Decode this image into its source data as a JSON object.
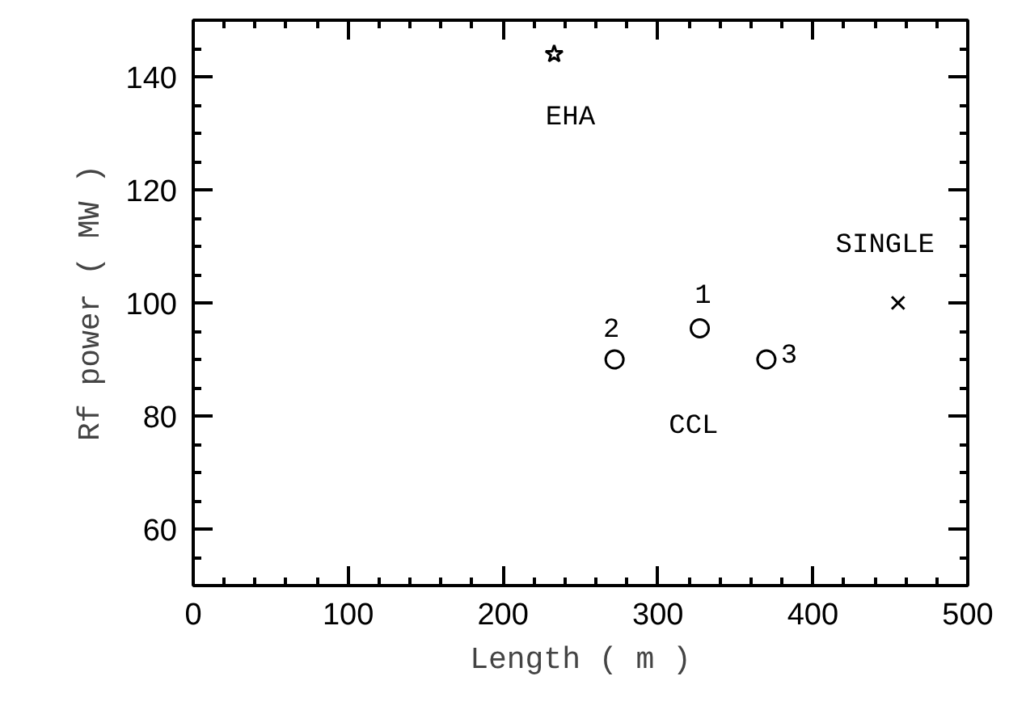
{
  "chart_data": {
    "type": "scatter",
    "xlabel": "Length ( m )",
    "ylabel": "Rf power ( MW )",
    "xlim": [
      0,
      500
    ],
    "ylim": [
      50,
      150
    ],
    "xticks": [
      0,
      100,
      200,
      300,
      400,
      500
    ],
    "yticks": [
      60,
      80,
      100,
      120,
      140
    ],
    "grid": false,
    "series": [
      {
        "name": "EHA",
        "color": "#000000",
        "marker": "star",
        "x": [
          233
        ],
        "values": [
          144
        ]
      },
      {
        "name": "CCL",
        "color": "#000000",
        "marker": "circle",
        "x": [
          272,
          327,
          370
        ],
        "values": [
          90,
          95.5,
          90
        ]
      },
      {
        "name": "SINGLE",
        "color": "#000000",
        "marker": "cross",
        "x": [
          455
        ],
        "values": [
          100
        ]
      }
    ],
    "annotations": [
      "2",
      "1",
      "3"
    ]
  }
}
